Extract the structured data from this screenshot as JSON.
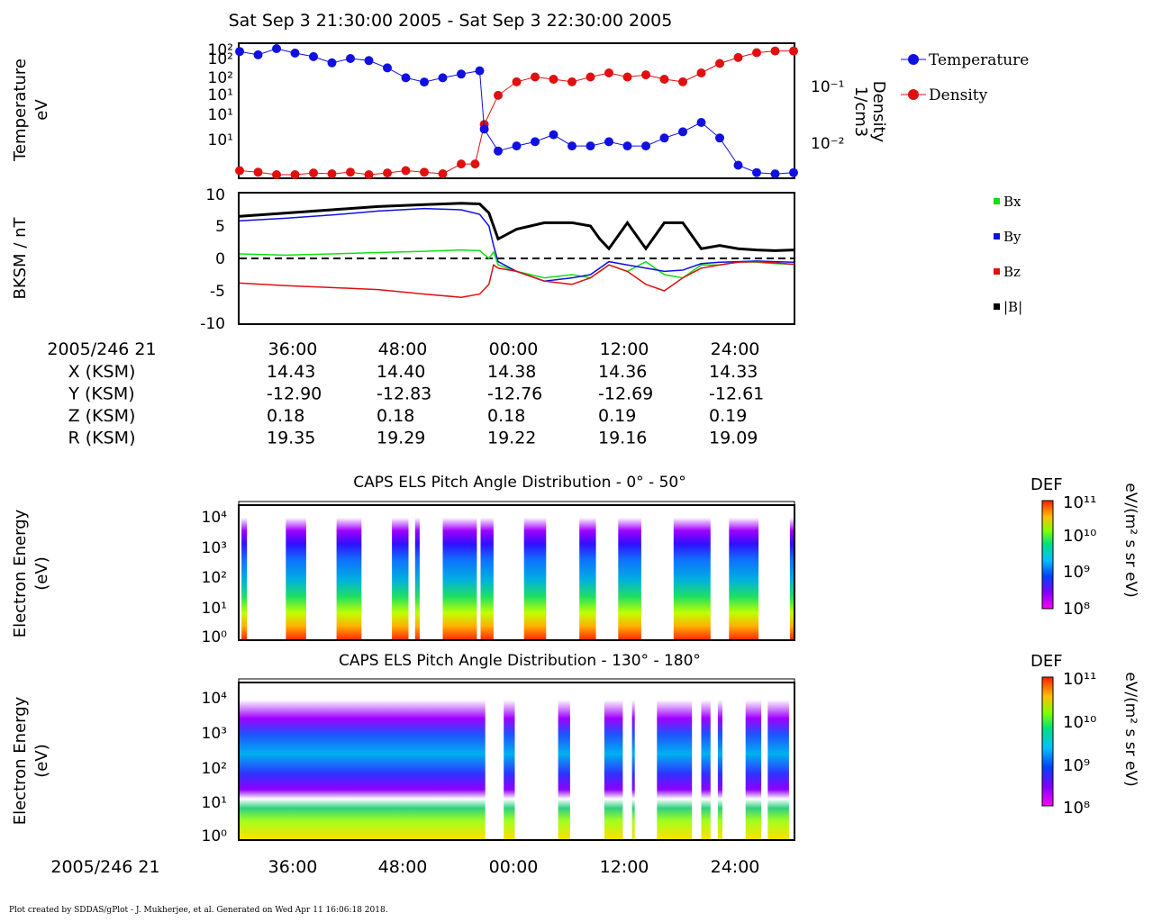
{
  "header": {
    "title": "Sat Sep 3 21:30:00 2005 - Sat Sep 3 22:30:00 2005",
    "footer": "Plot created by SDDAS/gPlot - J. Mukherjee, et al.  Generated on Wed Apr 11 16:06:18 2018."
  },
  "panels": {
    "moments": {
      "ylabel_left": [
        "Temperature",
        "eV"
      ],
      "ylabel_right": [
        "Density",
        "1/cm3"
      ],
      "left_ticks": [
        "10²",
        "10²",
        "10²",
        "10¹",
        "10¹",
        "10¹"
      ],
      "right_ticks": [
        "10⁻¹",
        "10⁻²"
      ],
      "legend": [
        "Temperature",
        "Density"
      ]
    },
    "mag": {
      "ylabel": "BKSM / nT",
      "y_ticks": [
        "10",
        "5",
        "0",
        "-5",
        "-10"
      ],
      "legend": [
        "Bx",
        "By",
        "Bz",
        "|B|"
      ]
    },
    "els_low": {
      "title": "CAPS ELS Pitch Angle Distribution - 0° - 50°",
      "ylabel": [
        "Electron Energy",
        "(eV)"
      ],
      "y_ticks": [
        "10⁴",
        "10³",
        "10²",
        "10¹",
        "10⁰"
      ]
    },
    "els_high": {
      "title": "CAPS ELS Pitch Angle Distribution - 130° - 180°",
      "ylabel": [
        "Electron Energy",
        "(eV)"
      ],
      "y_ticks": [
        "10⁴",
        "10³",
        "10²",
        "10¹",
        "10⁰"
      ]
    },
    "colorbar": {
      "label": "DEF",
      "units": "eV/(m² s sr eV)",
      "ticks": [
        "10¹¹",
        "10¹⁰",
        "10⁹",
        "10⁸"
      ]
    }
  },
  "ephemeris": {
    "start_label": "2005/246 21",
    "times": [
      "36:00",
      "48:00",
      "00:00",
      "12:00",
      "24:00"
    ],
    "rows": [
      {
        "name": "X (KSM)",
        "values": [
          "14.43",
          "14.40",
          "14.38",
          "14.36",
          "14.33"
        ]
      },
      {
        "name": "Y (KSM)",
        "values": [
          "-12.90",
          "-12.83",
          "-12.76",
          "-12.69",
          "-12.61"
        ]
      },
      {
        "name": "Z (KSM)",
        "values": [
          "0.18",
          "0.18",
          "0.18",
          "0.19",
          "0.19"
        ]
      },
      {
        "name": "R (KSM)",
        "values": [
          "19.35",
          "19.29",
          "19.22",
          "19.16",
          "19.09"
        ]
      }
    ]
  },
  "colors": {
    "temperature": "#1010e0",
    "density": "#e01010",
    "bx": "#10e010",
    "by": "#1010e0",
    "bz": "#e01010",
    "bmag": "#000000"
  },
  "chart_data": [
    {
      "type": "scatter",
      "name": "moments",
      "x_unit": "minutes after 21:30",
      "xlim": [
        0,
        60
      ],
      "series": [
        {
          "name": "Temperature",
          "x": [
            0,
            2,
            4,
            6,
            8,
            10,
            12,
            14,
            16,
            18,
            20,
            22,
            24,
            26,
            26.5,
            28,
            30,
            32,
            34,
            36,
            38,
            40,
            42,
            44,
            46,
            48,
            50,
            52,
            54,
            56,
            58,
            60
          ],
          "y": [
            180,
            160,
            200,
            170,
            150,
            120,
            140,
            130,
            100,
            70,
            60,
            70,
            80,
            90,
            11,
            5,
            6,
            7,
            9,
            6,
            6,
            7,
            6,
            6,
            8,
            10,
            14,
            8,
            3,
            2.3,
            2.2,
            2.3
          ]
        },
        {
          "name": "Density",
          "x": [
            0,
            2,
            4,
            6,
            8,
            10,
            12,
            14,
            16,
            18,
            20,
            22,
            24,
            25.5,
            26.5,
            28,
            30,
            32,
            34,
            36,
            38,
            40,
            42,
            44,
            46,
            48,
            50,
            52,
            54,
            56,
            58,
            60
          ],
          "y": [
            0.0035,
            0.0033,
            0.003,
            0.003,
            0.0032,
            0.0031,
            0.0033,
            0.003,
            0.0032,
            0.0035,
            0.0033,
            0.0031,
            0.0045,
            0.0045,
            0.02,
            0.06,
            0.1,
            0.12,
            0.11,
            0.1,
            0.12,
            0.14,
            0.12,
            0.13,
            0.11,
            0.1,
            0.14,
            0.2,
            0.25,
            0.3,
            0.32,
            0.32
          ]
        }
      ]
    },
    {
      "type": "line",
      "name": "magnetic-field",
      "x_unit": "minutes after 21:30",
      "xlim": [
        0,
        60
      ],
      "ylim": [
        -10,
        10
      ],
      "ylabel": "BKSM / nT",
      "series": [
        {
          "name": "Bx",
          "x": [
            0,
            5,
            10,
            15,
            20,
            24,
            26,
            27,
            27.5,
            28,
            30,
            33,
            36,
            38,
            40,
            42,
            44,
            46,
            48,
            50,
            52,
            54,
            56,
            58,
            60
          ],
          "y": [
            0.7,
            0.5,
            0.7,
            0.9,
            1.1,
            1.3,
            1.2,
            0,
            1,
            -1,
            -2,
            -3,
            -2.5,
            -3,
            -1,
            -2,
            -0.5,
            -2.5,
            -3,
            -1,
            -1,
            -0.5,
            -0.6,
            -0.8,
            -0.9
          ]
        },
        {
          "name": "By",
          "x": [
            0,
            5,
            10,
            15,
            20,
            24,
            26,
            27,
            27.5,
            28,
            30,
            33,
            36,
            38,
            40,
            42,
            44,
            46,
            48,
            50,
            52,
            54,
            56,
            58,
            60
          ],
          "y": [
            5.8,
            6.2,
            6.7,
            7.3,
            7.7,
            7.5,
            6.8,
            5,
            2,
            -0.5,
            -2,
            -3.5,
            -3,
            -2.5,
            -0.5,
            -1,
            -1.5,
            -2,
            -1.8,
            -0.8,
            -0.6,
            -0.5,
            -0.4,
            -0.5,
            -0.6
          ]
        },
        {
          "name": "Bz",
          "x": [
            0,
            5,
            10,
            15,
            20,
            24,
            26,
            27,
            27.5,
            28,
            30,
            33,
            36,
            38,
            40,
            42,
            44,
            46,
            48,
            50,
            52,
            54,
            56,
            58,
            60
          ],
          "y": [
            -3.8,
            -4.2,
            -4.5,
            -4.8,
            -5.5,
            -6,
            -5.5,
            -4,
            -1,
            -1.5,
            -2,
            -3.5,
            -4,
            -3,
            -1,
            -2,
            -4,
            -5,
            -3,
            -1.5,
            -1,
            -0.6,
            -0.5,
            -0.7,
            -0.9
          ]
        },
        {
          "name": "|B|",
          "x": [
            0,
            5,
            10,
            15,
            20,
            24,
            26,
            27,
            27.5,
            28,
            30,
            33,
            36,
            38,
            39,
            40,
            42,
            44,
            46,
            48,
            50,
            52,
            54,
            56,
            58,
            60
          ],
          "y": [
            6.5,
            7,
            7.5,
            8,
            8.3,
            8.5,
            8.4,
            7,
            5,
            3,
            4.5,
            5.5,
            5.5,
            5,
            3,
            1.5,
            5.5,
            1.5,
            5.5,
            5.5,
            1.5,
            2,
            1.5,
            1.3,
            1.2,
            1.3
          ]
        }
      ]
    },
    {
      "type": "heatmap",
      "name": "els-0-50",
      "x_unit": "minutes after 21:30",
      "xlim": [
        0,
        60
      ],
      "y_unit": "eV",
      "ylim": [
        1,
        30000
      ],
      "zlim": [
        100000000.0,
        100000000000.0
      ],
      "active_intervals": [
        [
          0.2,
          0.8
        ],
        [
          5,
          7.2
        ],
        [
          10.5,
          13.2
        ],
        [
          16.5,
          18.3
        ],
        [
          19,
          19.5
        ],
        [
          22,
          25.7
        ],
        [
          26.1,
          27.5
        ],
        [
          30.8,
          33.2
        ],
        [
          36.8,
          38.6
        ],
        [
          41,
          43.5
        ],
        [
          47,
          51
        ],
        [
          53,
          56.2
        ],
        [
          59.6,
          60
        ]
      ]
    },
    {
      "type": "heatmap",
      "name": "els-130-180",
      "x_unit": "minutes after 21:30",
      "xlim": [
        0,
        60
      ],
      "y_unit": "eV",
      "ylim": [
        1,
        30000
      ],
      "zlim": [
        100000000.0,
        100000000000.0
      ],
      "active_intervals": [
        [
          0,
          26.6
        ],
        [
          28.6,
          29.8
        ],
        [
          34.5,
          35.8
        ],
        [
          39.5,
          41.5
        ],
        [
          42.5,
          42.8
        ],
        [
          45.2,
          49
        ],
        [
          50,
          51
        ],
        [
          51.8,
          52.3
        ],
        [
          54.8,
          56.5
        ],
        [
          57.2,
          59.5
        ]
      ]
    }
  ]
}
